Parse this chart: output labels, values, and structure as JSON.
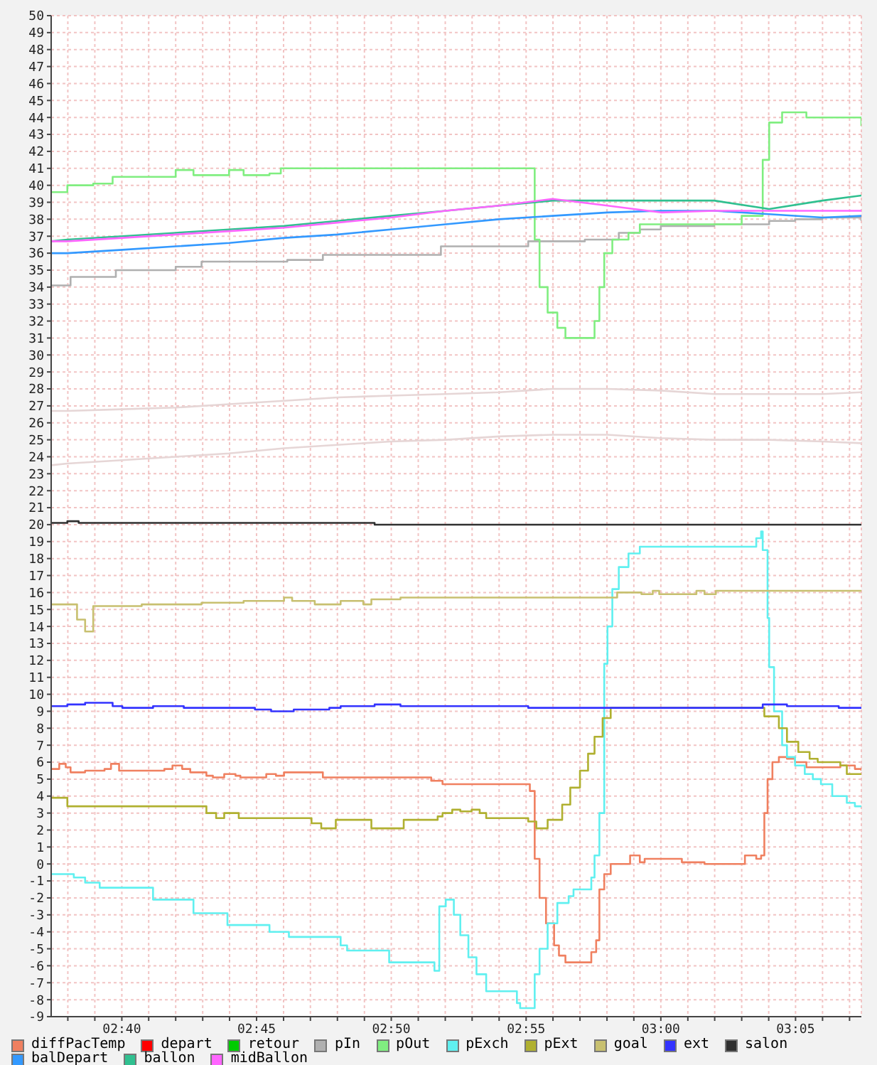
{
  "chart_data": {
    "type": "step",
    "x": [
      2.623,
      2.633,
      2.667,
      2.7,
      2.733,
      2.767,
      2.8,
      2.833,
      2.867,
      2.9,
      2.933,
      2.967,
      3.0,
      3.033,
      3.067,
      3.1,
      3.124
    ],
    "xlim": [
      2.623,
      3.124
    ],
    "xticks": [
      {
        "value": 2.6333,
        "label": null
      },
      {
        "value": 2.65,
        "label": null
      },
      {
        "value": 2.6667,
        "label": "02:40"
      },
      {
        "value": 2.6833,
        "label": null
      },
      {
        "value": 2.7,
        "label": null
      },
      {
        "value": 2.7167,
        "label": null
      },
      {
        "value": 2.7333,
        "label": null
      },
      {
        "value": 2.75,
        "label": "02:45"
      },
      {
        "value": 2.7667,
        "label": null
      },
      {
        "value": 2.7833,
        "label": null
      },
      {
        "value": 2.8,
        "label": null
      },
      {
        "value": 2.8167,
        "label": null
      },
      {
        "value": 2.8333,
        "label": "02:50"
      },
      {
        "value": 2.85,
        "label": null
      },
      {
        "value": 2.8667,
        "label": null
      },
      {
        "value": 2.8833,
        "label": null
      },
      {
        "value": 2.9,
        "label": null
      },
      {
        "value": 2.9167,
        "label": "02:55"
      },
      {
        "value": 2.9333,
        "label": null
      },
      {
        "value": 2.95,
        "label": null
      },
      {
        "value": 2.9667,
        "label": null
      },
      {
        "value": 2.9833,
        "label": null
      },
      {
        "value": 3.0,
        "label": "03:00"
      },
      {
        "value": 3.0167,
        "label": null
      },
      {
        "value": 3.0333,
        "label": null
      },
      {
        "value": 3.05,
        "label": null
      },
      {
        "value": 3.0667,
        "label": null
      },
      {
        "value": 3.0833,
        "label": "03:05"
      },
      {
        "value": 3.1,
        "label": null
      },
      {
        "value": 3.1167,
        "label": null
      }
    ],
    "ylim": [
      -9,
      50
    ],
    "yticks": [
      -9,
      -8,
      -7,
      -6,
      -5,
      -4,
      -3,
      -2,
      -1,
      0,
      1,
      2,
      3,
      4,
      5,
      6,
      7,
      8,
      9,
      10,
      11,
      12,
      13,
      14,
      15,
      16,
      17,
      18,
      19,
      20,
      21,
      22,
      23,
      24,
      25,
      26,
      27,
      28,
      29,
      30,
      31,
      32,
      33,
      34,
      35,
      36,
      37,
      38,
      39,
      40,
      41,
      42,
      43,
      44,
      45,
      46,
      47,
      48,
      49,
      50
    ],
    "grid": true,
    "legend": "bottom",
    "series": [
      {
        "type": "line",
        "color": "#e6d6d6",
        "values": [
          26.7,
          26.7,
          26.8,
          26.9,
          27.1,
          27.3,
          27.5,
          27.6,
          27.7,
          27.8,
          28.0,
          28.0,
          27.9,
          27.7,
          27.7,
          27.7,
          27.8
        ]
      },
      {
        "type": "line",
        "color": "#e6d6d6",
        "values": [
          23.5,
          23.6,
          23.8,
          24.0,
          24.2,
          24.5,
          24.7,
          24.9,
          25.0,
          25.2,
          25.3,
          25.3,
          25.1,
          25.0,
          25.0,
          24.9,
          24.8
        ]
      },
      {
        "name": "diffPacTemp",
        "color": "#f08060",
        "x": [
          2.623,
          2.628,
          2.632,
          2.635,
          2.644,
          2.656,
          2.66,
          2.665,
          2.693,
          2.698,
          2.704,
          2.709,
          2.719,
          2.723,
          2.73,
          2.737,
          2.74,
          2.756,
          2.762,
          2.767,
          2.791,
          2.858,
          2.865,
          2.919,
          2.922,
          2.925,
          2.929,
          2.934,
          2.937,
          2.941,
          2.957,
          2.96,
          2.962,
          2.965,
          2.969,
          2.981,
          2.987,
          2.99,
          3.013,
          3.027,
          3.052,
          3.059,
          3.062,
          3.064,
          3.066,
          3.069,
          3.073,
          3.078,
          3.083,
          3.09,
          3.111,
          3.12,
          3.124
        ],
        "values": [
          5.6,
          5.9,
          5.7,
          5.4,
          5.5,
          5.6,
          5.9,
          5.5,
          5.6,
          5.8,
          5.6,
          5.4,
          5.2,
          5.1,
          5.3,
          5.2,
          5.1,
          5.3,
          5.2,
          5.4,
          5.1,
          4.9,
          4.7,
          4.3,
          0.3,
          -2.0,
          -3.5,
          -4.8,
          -5.4,
          -5.8,
          -5.2,
          -4.5,
          -1.5,
          -0.6,
          0,
          0.5,
          0.1,
          0.3,
          0.1,
          0,
          0.5,
          0.3,
          0.5,
          3.0,
          5.0,
          6.0,
          6.3,
          6.2,
          6.0,
          5.7,
          5.8,
          5.6,
          5.5
        ]
      },
      {
        "name": "depart",
        "color": "#ff0000",
        "values": [
          null,
          null,
          null,
          null,
          null,
          null,
          null,
          null,
          null,
          null,
          null,
          null,
          null,
          null,
          null,
          null,
          null
        ]
      },
      {
        "name": "retour",
        "color": "#00cc00",
        "values": [
          null,
          null,
          null,
          null,
          null,
          null,
          null,
          null,
          null,
          null,
          null,
          null,
          null,
          null,
          null,
          null,
          null
        ]
      },
      {
        "name": "pIn",
        "color": "#b0b0b0",
        "x": [
          2.623,
          2.635,
          2.663,
          2.7,
          2.716,
          2.769,
          2.791,
          2.864,
          2.918,
          2.953,
          2.974,
          2.987,
          3.0,
          3.033,
          3.067,
          3.083,
          3.1,
          3.124
        ],
        "values": [
          34.1,
          34.6,
          35.0,
          35.2,
          35.5,
          35.6,
          35.9,
          36.4,
          36.7,
          36.8,
          37.2,
          37.4,
          37.6,
          37.7,
          37.9,
          38.0,
          38.1,
          37.9
        ]
      },
      {
        "name": "pOut",
        "color": "#80ee80",
        "x": [
          2.623,
          2.633,
          2.649,
          2.661,
          2.7,
          2.711,
          2.733,
          2.742,
          2.758,
          2.765,
          2.918,
          2.922,
          2.925,
          2.93,
          2.936,
          2.941,
          2.955,
          2.959,
          2.962,
          2.965,
          2.97,
          2.98,
          2.987,
          3.05,
          3.063,
          3.067,
          3.075,
          3.09,
          3.113,
          3.124
        ],
        "values": [
          39.6,
          40.0,
          40.1,
          40.5,
          40.9,
          40.6,
          40.9,
          40.6,
          40.7,
          41.0,
          41.0,
          36.8,
          34.0,
          32.5,
          31.6,
          31.0,
          31.0,
          32.0,
          34.0,
          36.0,
          36.8,
          37.2,
          37.7,
          38.2,
          41.5,
          43.7,
          44.3,
          44.0,
          44.0,
          43.5
        ]
      },
      {
        "name": "pExch",
        "color": "#60f0f0",
        "x": [
          2.623,
          2.637,
          2.644,
          2.653,
          2.686,
          2.711,
          2.732,
          2.758,
          2.77,
          2.802,
          2.806,
          2.832,
          2.86,
          2.863,
          2.867,
          2.872,
          2.876,
          2.881,
          2.886,
          2.892,
          2.911,
          2.913,
          2.922,
          2.925,
          2.93,
          2.936,
          2.943,
          2.946,
          2.957,
          2.959,
          2.962,
          2.965,
          2.967,
          2.97,
          2.974,
          2.98,
          2.987,
          3.059,
          3.062,
          3.063,
          3.066,
          3.067,
          3.07,
          3.075,
          3.078,
          3.083,
          3.089,
          3.094,
          3.099,
          3.106,
          3.115,
          3.12,
          3.124
        ],
        "values": [
          -0.6,
          -0.8,
          -1.1,
          -1.4,
          -2.1,
          -2.9,
          -3.6,
          -4.0,
          -4.3,
          -4.8,
          -5.1,
          -5.8,
          -6.3,
          -2.5,
          -2.1,
          -3.0,
          -4.2,
          -5.5,
          -6.5,
          -7.5,
          -8.2,
          -8.5,
          -6.5,
          -5.0,
          -3.5,
          -2.3,
          -1.9,
          -1.5,
          -0.8,
          0.5,
          3.0,
          11.8,
          14.0,
          16.2,
          17.5,
          18.3,
          18.7,
          19.2,
          19.6,
          18.5,
          14.5,
          11.6,
          9.0,
          7.0,
          6.3,
          5.8,
          5.3,
          5.0,
          4.7,
          4.0,
          3.6,
          3.4,
          3.4
        ]
      },
      {
        "name": "pExt",
        "color": "#b0b030",
        "x": [
          2.623,
          2.633,
          2.719,
          2.725,
          2.73,
          2.739,
          2.784,
          2.79,
          2.799,
          2.821,
          2.841,
          2.862,
          2.865,
          2.871,
          2.876,
          2.883,
          2.888,
          2.892,
          2.918,
          2.923,
          2.93,
          2.939,
          2.944,
          2.95,
          2.955,
          2.959,
          2.964,
          2.969,
          3.064,
          3.073,
          3.078,
          3.085,
          3.092,
          3.097,
          3.111,
          3.115,
          3.124
        ],
        "values": [
          3.9,
          3.4,
          3.0,
          2.7,
          3.0,
          2.7,
          2.4,
          2.1,
          2.6,
          2.1,
          2.6,
          2.8,
          3.0,
          3.2,
          3.1,
          3.2,
          3.0,
          2.7,
          2.5,
          2.1,
          2.6,
          3.5,
          4.5,
          5.5,
          6.5,
          7.5,
          8.6,
          9.2,
          8.7,
          8.0,
          7.2,
          6.6,
          6.2,
          6.0,
          5.8,
          5.3,
          5.3
        ]
      },
      {
        "name": "goal",
        "color": "#c8c070",
        "x": [
          2.623,
          2.628,
          2.634,
          2.639,
          2.644,
          2.649,
          2.679,
          2.716,
          2.742,
          2.767,
          2.772,
          2.786,
          2.802,
          2.816,
          2.821,
          2.839,
          2.973,
          2.988,
          2.995,
          2.999,
          3.022,
          3.027,
          3.034,
          3.124
        ],
        "values": [
          15.3,
          15.3,
          15.3,
          14.4,
          13.7,
          15.2,
          15.3,
          15.4,
          15.5,
          15.7,
          15.5,
          15.3,
          15.5,
          15.3,
          15.6,
          15.7,
          16.0,
          15.9,
          16.1,
          15.9,
          16.1,
          15.9,
          16.1,
          16.1
        ]
      },
      {
        "name": "ext",
        "color": "#3333ff",
        "x": [
          2.623,
          2.633,
          2.644,
          2.661,
          2.667,
          2.686,
          2.705,
          2.749,
          2.759,
          2.773,
          2.795,
          2.802,
          2.823,
          2.839,
          2.918,
          3.063,
          3.078,
          3.11,
          3.124
        ],
        "values": [
          9.3,
          9.4,
          9.5,
          9.3,
          9.2,
          9.3,
          9.2,
          9.1,
          9.0,
          9.1,
          9.2,
          9.3,
          9.4,
          9.3,
          9.2,
          9.4,
          9.3,
          9.2,
          9.2
        ]
      },
      {
        "name": "salon",
        "color": "#303030",
        "x": [
          2.623,
          2.633,
          2.64,
          2.823,
          3.124
        ],
        "values": [
          20.1,
          20.2,
          20.1,
          20.0,
          20.0
        ]
      },
      {
        "name": "balDepart",
        "type": "line",
        "color": "#3399ff",
        "values": [
          36.0,
          36.0,
          36.2,
          36.4,
          36.6,
          36.9,
          37.1,
          37.4,
          37.7,
          38.0,
          38.2,
          38.4,
          38.5,
          38.5,
          38.3,
          38.1,
          38.2
        ]
      },
      {
        "name": "ballon",
        "type": "line",
        "color": "#30c090",
        "values": [
          36.7,
          36.8,
          37.0,
          37.2,
          37.4,
          37.6,
          37.9,
          38.2,
          38.5,
          38.8,
          39.1,
          39.1,
          39.1,
          39.1,
          38.6,
          39.1,
          39.4
        ]
      },
      {
        "name": "midBallon",
        "type": "line",
        "color": "#ff66ff",
        "values": [
          36.7,
          36.7,
          36.9,
          37.1,
          37.3,
          37.5,
          37.8,
          38.1,
          38.5,
          38.8,
          39.2,
          38.8,
          38.4,
          38.5,
          38.5,
          38.5,
          38.5
        ]
      }
    ]
  }
}
